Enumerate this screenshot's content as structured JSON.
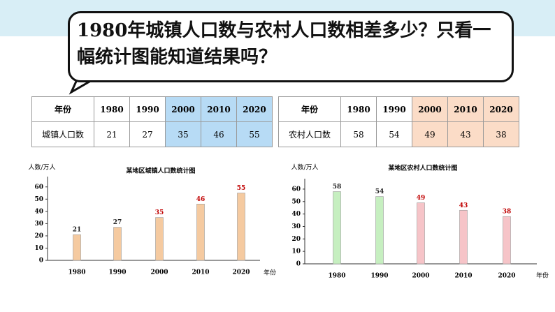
{
  "bubble": {
    "text": "1980年城镇人口数与农村人口数相差多少？只看一幅统计图能知道结果吗？"
  },
  "tables": [
    {
      "rows": [
        [
          "年份",
          1980,
          1990,
          2000,
          2010,
          2020
        ],
        [
          "城镇人口数",
          21,
          27,
          35,
          46,
          55
        ]
      ]
    },
    {
      "rows": [
        [
          "年份",
          1980,
          1990,
          2000,
          2010,
          2020
        ],
        [
          "农村人口数",
          58,
          54,
          49,
          43,
          38
        ]
      ]
    }
  ],
  "chart_data": [
    {
      "type": "bar",
      "title": "某地区城镇人口数统计图",
      "y_label": "人数/万人",
      "x_label": "年份",
      "categories": [
        "1980",
        "1990",
        "2000",
        "2010",
        "2020"
      ],
      "values": [
        21,
        27,
        35,
        46,
        55
      ],
      "colors": [
        "#f5caa0",
        "#f5caa0",
        "#f5caa0",
        "#f5caa0",
        "#f5caa0"
      ],
      "value_label_colors": [
        "#222222",
        "#222222",
        "#c00000",
        "#c00000",
        "#c00000"
      ],
      "ylim": [
        0,
        65
      ],
      "yticks": [
        0,
        10,
        20,
        30,
        40,
        50,
        60
      ]
    },
    {
      "type": "bar",
      "title": "某地区农村人口数统计图",
      "y_label": "人数/万人",
      "x_label": "年份",
      "categories": [
        "1980",
        "1990",
        "2000",
        "2010",
        "2020"
      ],
      "values": [
        58,
        54,
        49,
        43,
        38
      ],
      "colors": [
        "#c6efc0",
        "#c6efc0",
        "#f6c4c8",
        "#f6c4c8",
        "#f6c4c8"
      ],
      "value_label_colors": [
        "#222222",
        "#222222",
        "#c00000",
        "#c00000",
        "#c00000"
      ],
      "ylim": [
        0,
        65
      ],
      "yticks": [
        0,
        10,
        20,
        30,
        40,
        50,
        60
      ]
    }
  ]
}
